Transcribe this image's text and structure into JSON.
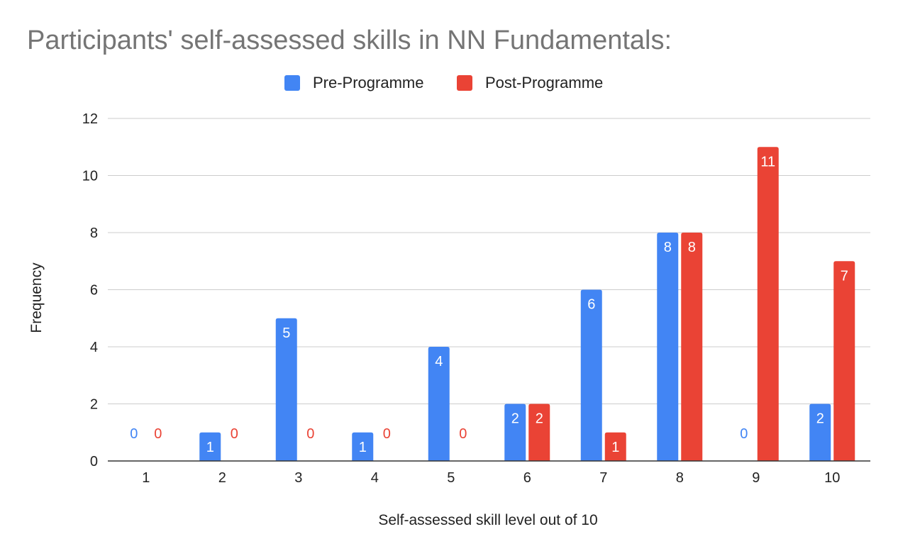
{
  "chart_data": {
    "type": "bar",
    "title": "Participants' self-assessed skills in NN Fundamentals:",
    "xlabel": "Self-assessed skill level out of 10",
    "ylabel": "Frequency",
    "categories": [
      "1",
      "2",
      "3",
      "4",
      "5",
      "6",
      "7",
      "8",
      "9",
      "10"
    ],
    "series": [
      {
        "name": "Pre-Programme",
        "color": "#4285f4",
        "values": [
          0,
          1,
          5,
          1,
          4,
          2,
          6,
          8,
          0,
          2
        ]
      },
      {
        "name": "Post-Programme",
        "color": "#ea4335",
        "values": [
          0,
          0,
          0,
          0,
          0,
          2,
          1,
          8,
          11,
          7
        ]
      }
    ],
    "ylim": [
      0,
      12
    ],
    "yticks": [
      0,
      2,
      4,
      6,
      8,
      10,
      12
    ],
    "grid": true,
    "legend": "top-center"
  }
}
